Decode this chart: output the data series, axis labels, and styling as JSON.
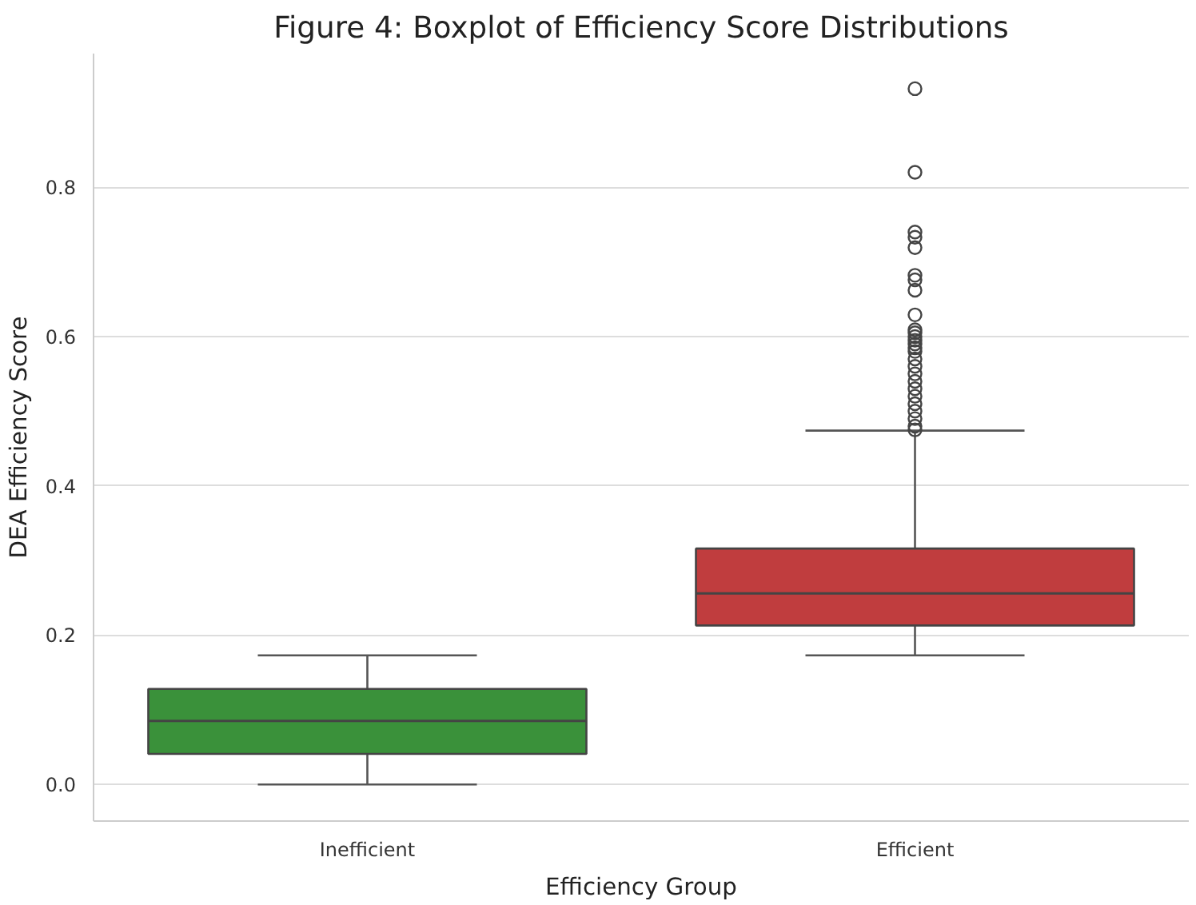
{
  "chart_data": {
    "type": "box",
    "title": "Figure 4: Boxplot of Efficiency Score Distributions",
    "xlabel": "Efficiency Group",
    "ylabel": "DEA Efficiency Score",
    "categories": [
      "Inefficient",
      "Efficient"
    ],
    "colors": [
      "#3a913a",
      "#c03d3e"
    ],
    "boxes": [
      {
        "low": 0.0,
        "q1": 0.041,
        "median": 0.085,
        "q3": 0.128,
        "high": 0.173
      },
      {
        "low": 0.173,
        "q1": 0.213,
        "median": 0.256,
        "q3": 0.316,
        "high": 0.474,
        "outliers": [
          0.932,
          0.82,
          0.74,
          0.733,
          0.719,
          0.682,
          0.676,
          0.662,
          0.629,
          0.609,
          0.605,
          0.6,
          0.595,
          0.59,
          0.585,
          0.58,
          0.57,
          0.56,
          0.55,
          0.54,
          0.53,
          0.52,
          0.51,
          0.5,
          0.49,
          0.48,
          0.475
        ]
      }
    ],
    "ylim": [
      -0.049,
      0.979
    ],
    "yticks": [
      {
        "value": 0,
        "label": "0.0"
      },
      0.2,
      0.4,
      0.6,
      0.8
    ],
    "grid": "y",
    "marker": "circle"
  }
}
